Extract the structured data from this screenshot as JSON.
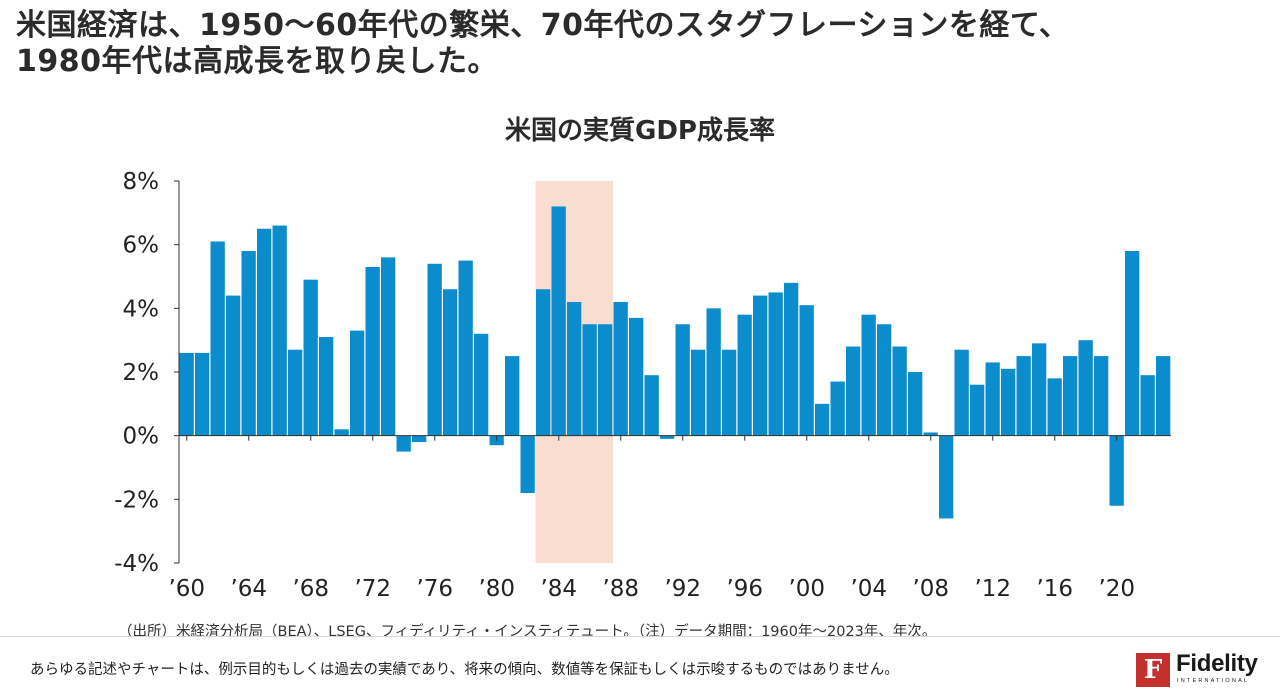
{
  "headline": {
    "line1": "米国経済は、1950～60年代の繁栄、70年代のスタグフレーションを経て、",
    "line2": "1980年代は高成長を取り戻した。"
  },
  "chart_data": {
    "type": "bar",
    "title": "米国の実質GDP成長率",
    "x": [
      1960,
      1961,
      1962,
      1963,
      1964,
      1965,
      1966,
      1967,
      1968,
      1969,
      1970,
      1971,
      1972,
      1973,
      1974,
      1975,
      1976,
      1977,
      1978,
      1979,
      1980,
      1981,
      1982,
      1983,
      1984,
      1985,
      1986,
      1987,
      1988,
      1989,
      1990,
      1991,
      1992,
      1993,
      1994,
      1995,
      1996,
      1997,
      1998,
      1999,
      2000,
      2001,
      2002,
      2003,
      2004,
      2005,
      2006,
      2007,
      2008,
      2009,
      2010,
      2011,
      2012,
      2013,
      2014,
      2015,
      2016,
      2017,
      2018,
      2019,
      2020,
      2021,
      2022,
      2023
    ],
    "values": [
      2.6,
      2.6,
      6.1,
      4.4,
      5.8,
      6.5,
      6.6,
      2.7,
      4.9,
      3.1,
      0.2,
      3.3,
      5.3,
      5.6,
      -0.5,
      -0.2,
      5.4,
      4.6,
      5.5,
      3.2,
      -0.3,
      2.5,
      -1.8,
      4.6,
      7.2,
      4.2,
      3.5,
      3.5,
      4.2,
      3.7,
      1.9,
      -0.1,
      3.5,
      2.7,
      4.0,
      2.7,
      3.8,
      4.4,
      4.5,
      4.8,
      4.1,
      1.0,
      1.7,
      2.8,
      3.8,
      3.5,
      2.8,
      2.0,
      0.1,
      -2.6,
      2.7,
      1.6,
      2.3,
      2.1,
      2.5,
      2.9,
      1.8,
      2.5,
      3.0,
      2.5,
      -2.2,
      5.8,
      1.9,
      2.5
    ],
    "y_ticks": [
      "8%",
      "6%",
      "4%",
      "2%",
      "0%",
      "-2%",
      "-4%"
    ],
    "ylim": [
      -4,
      8
    ],
    "x_ticks": [
      "’60",
      "’64",
      "’68",
      "’72",
      "’76",
      "’80",
      "’84",
      "’88",
      "’92",
      "’96",
      "’00",
      "’04",
      "’08",
      "’12",
      "’16",
      "’20"
    ],
    "highlight_range": [
      1983,
      1987
    ],
    "bar_color": "#0b8ccc",
    "highlight_color": "#f9ddd0"
  },
  "footer": {
    "source": "（出所）米経済分析局（BEA）、LSEG、フィディリティ・インスティテュート。（注）データ期間：1960年～2023年、年次。",
    "disclaimer": "あらゆる記述やチャートは、例示目的もしくは過去の実績であり、将来の傾向、数値等を保証もしくは示唆するものではありません。"
  },
  "logo": {
    "name": "Fidelity",
    "sub": "INTERNATIONAL",
    "mark": "F",
    "color": "#c4302b"
  }
}
